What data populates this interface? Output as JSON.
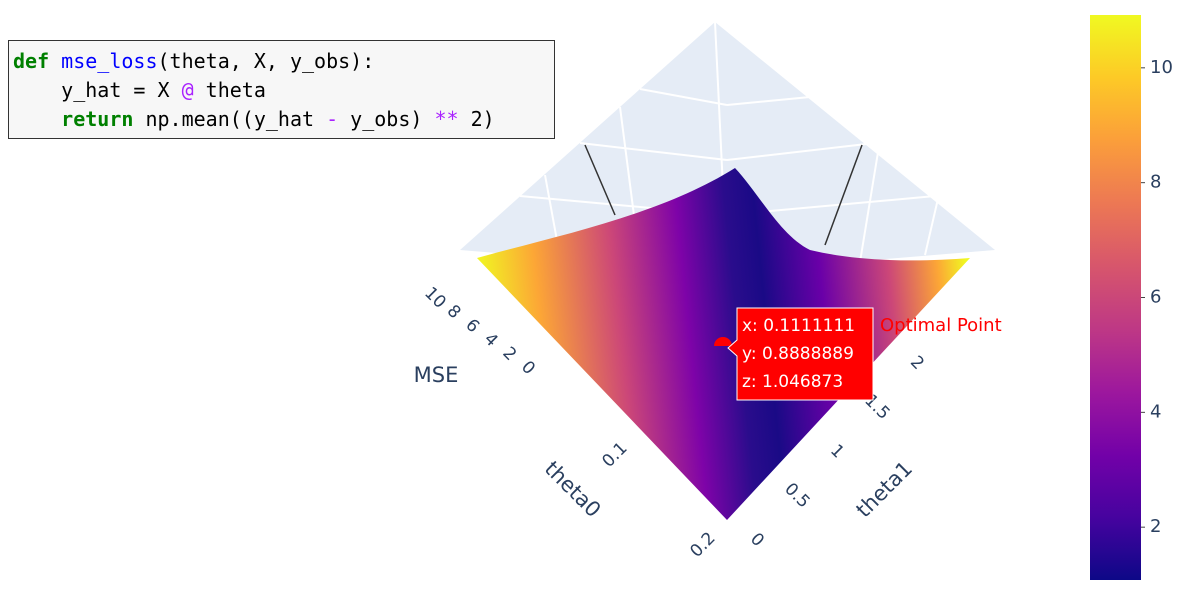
{
  "code": {
    "lines": [
      [
        {
          "text": "def",
          "color": "#008000"
        },
        {
          "text": " ",
          "color": "#000000"
        },
        {
          "text": "mse_loss",
          "color": "#0000ff"
        },
        {
          "text": "(theta, X, y_obs):",
          "color": "#000000"
        }
      ],
      [
        {
          "text": "    y_hat = X ",
          "color": "#000000"
        },
        {
          "text": "@",
          "color": "#aa22ff"
        },
        {
          "text": " theta",
          "color": "#000000"
        }
      ],
      [
        {
          "text": "    ",
          "color": "#000000"
        },
        {
          "text": "return",
          "color": "#008000"
        },
        {
          "text": " np.mean((y_hat ",
          "color": "#000000"
        },
        {
          "text": "-",
          "color": "#aa22ff"
        },
        {
          "text": " y_obs) ",
          "color": "#000000"
        },
        {
          "text": "**",
          "color": "#aa22ff"
        },
        {
          "text": " 2",
          "color": "#000000"
        },
        {
          "text": ")",
          "color": "#000000"
        }
      ]
    ]
  },
  "chart_data": {
    "type": "surface",
    "axes": {
      "x": {
        "title": "theta0",
        "ticks": [
          0.1,
          0.2
        ]
      },
      "y": {
        "title": "theta1",
        "ticks": [
          0,
          0.5,
          1,
          1.5,
          2
        ]
      },
      "z": {
        "title": "MSE",
        "ticks": [
          0,
          2,
          4,
          6,
          8,
          10
        ]
      }
    },
    "colorbar": {
      "range": [
        1.08,
        10.92
      ],
      "ticks": [
        2,
        4,
        6,
        8,
        10
      ]
    },
    "point": {
      "x": 0.1111111,
      "y": 0.8888889,
      "z": 1.046873,
      "labels": [
        "x: 0.1111111",
        "y: 0.8888889",
        "z: 1.046873"
      ],
      "annotation": "Optimal Point",
      "color": "#ff0000"
    }
  }
}
